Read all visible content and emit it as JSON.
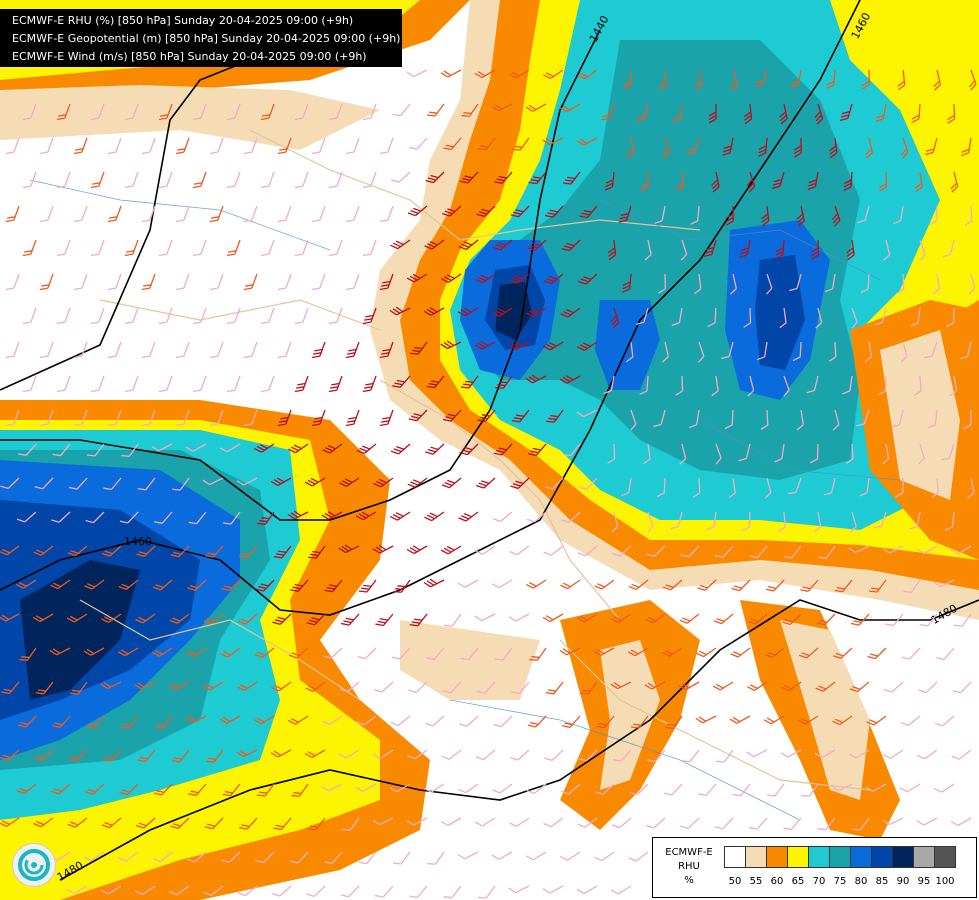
{
  "header": {
    "lines": [
      "ECMWF-E RHU (%) [850 hPa] Sunday 20-04-2025 09:00 (+9h)",
      "ECMWF-E Geopotential (m) [850 hPa] Sunday 20-04-2025 09:00 (+9h)",
      "ECMWF-E Wind (m/s) [850 hPa] Sunday 20-04-2025 09:00 (+9h)"
    ]
  },
  "contours": {
    "labels": [
      "1440",
      "1460",
      "1460",
      "1480",
      "1480"
    ]
  },
  "legend": {
    "name_lines": [
      "ECMWF-E",
      "RHU",
      "%"
    ],
    "ticks": [
      "50",
      "55",
      "60",
      "65",
      "70",
      "75",
      "80",
      "85",
      "90",
      "95",
      "100"
    ],
    "colors": [
      "#ffffff",
      "#f5dcb4",
      "#f98a00",
      "#fcf400",
      "#1ecbd2",
      "#1aa3ab",
      "#0a6bdc",
      "#0046a8",
      "#00245c",
      "#a8a8a8",
      "#555555"
    ]
  },
  "logo": {
    "icon": "ecmwf-swirl-icon"
  },
  "palette": {
    "white": "#ffffff",
    "beige": "#f5dcb4",
    "orange": "#f98a00",
    "yellow": "#fcf400",
    "cyan": "#1ecbd2",
    "teal": "#1aa3ab",
    "blue": "#0a6bdc",
    "dark_blue": "#0046a8",
    "navy": "#00245c",
    "wind_light": "#f4a9c8",
    "wind_mid": "#ee5a1e",
    "wind_strong": "#b8101e"
  }
}
